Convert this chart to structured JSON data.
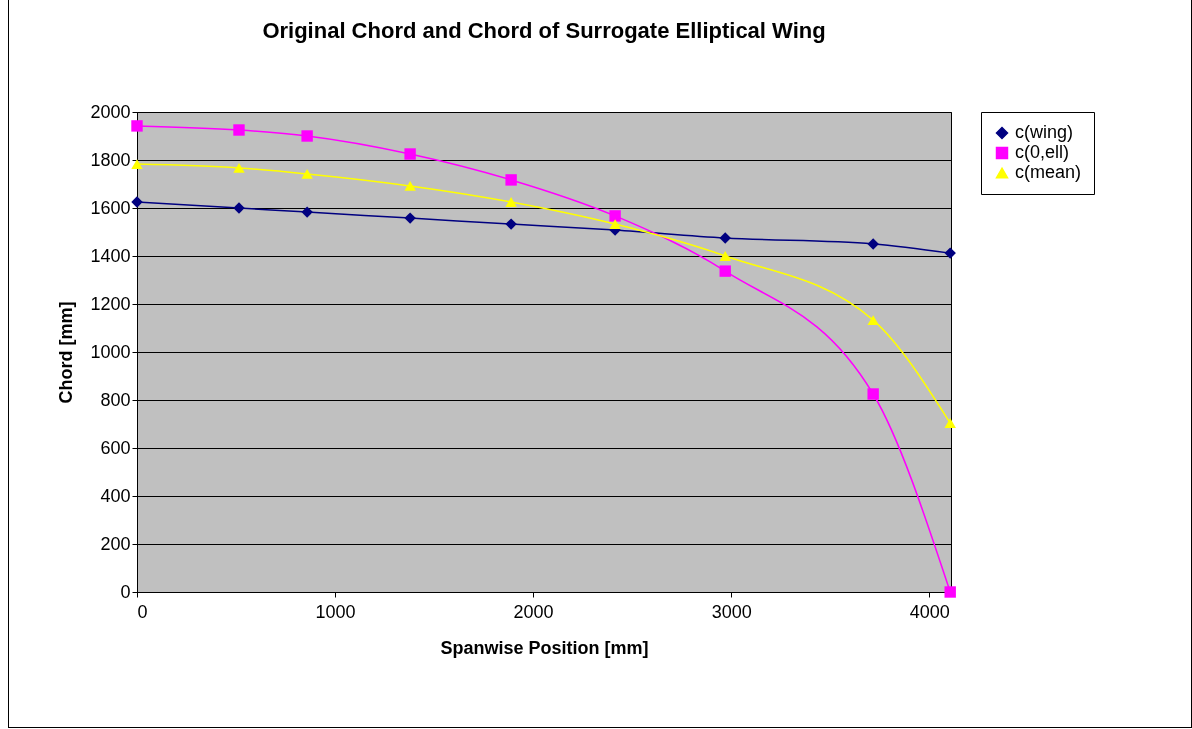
{
  "chart_data": {
    "type": "line",
    "title": "Original Chord and Chord of Surrogate Elliptical Wing",
    "xlabel": "Spanwise Position [mm]",
    "ylabel": "Chord [mm]",
    "x": [
      0,
      515,
      859,
      1379,
      1889,
      2414,
      2970,
      3717,
      4106
    ],
    "series": [
      {
        "name": "c(wing)",
        "color": "#000080",
        "marker": "diamond",
        "values": [
          1625,
          1600,
          1583,
          1558,
          1533,
          1508,
          1475,
          1450,
          1412
        ]
      },
      {
        "name": "c(0,ell)",
        "color": "#ff00ff",
        "marker": "square",
        "values": [
          1942,
          1925,
          1900,
          1825,
          1717,
          1567,
          1337,
          825,
          0
        ]
      },
      {
        "name": "c(mean)",
        "color": "#ffff00",
        "marker": "triangle",
        "values": [
          1783,
          1767,
          1742,
          1692,
          1625,
          1533,
          1400,
          1133,
          704
        ]
      }
    ],
    "xlim": [
      0,
      4110
    ],
    "xticks": [
      0,
      1000,
      2000,
      3000,
      4000
    ],
    "ylim": [
      0,
      2000
    ],
    "yticks": [
      0,
      200,
      400,
      600,
      800,
      1000,
      1200,
      1400,
      1600,
      1800,
      2000
    ],
    "grid": "y",
    "legend": "right"
  }
}
